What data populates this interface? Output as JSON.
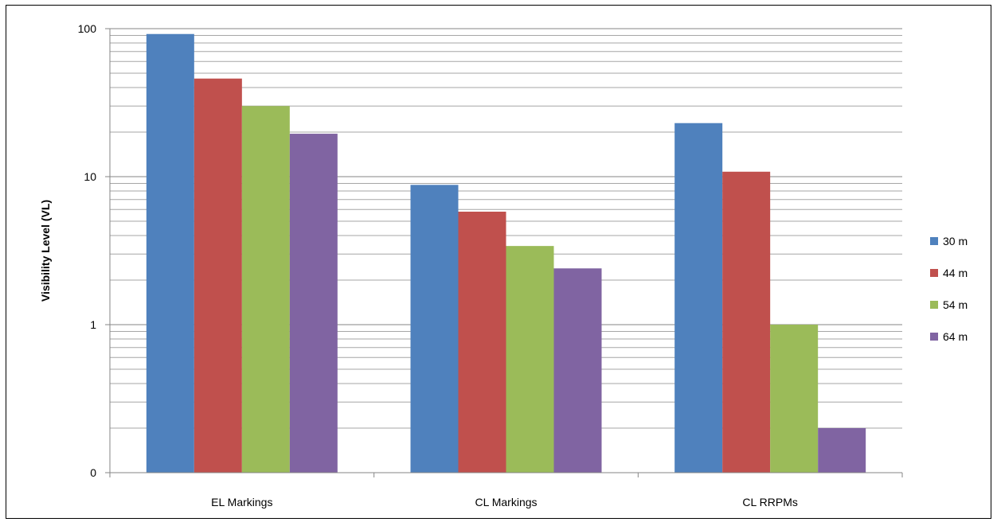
{
  "chart_data": {
    "type": "bar",
    "title": "",
    "xlabel": "",
    "ylabel": "Visibility Level (VL)",
    "y_scale": "log",
    "ylim": [
      0.1,
      100
    ],
    "y_tick_labels": [
      "100",
      "10",
      "1",
      "0"
    ],
    "y_tick_values": [
      100,
      10,
      1,
      0.1
    ],
    "grid": "major and minor horizontal gridlines",
    "legend_position": "right",
    "categories": [
      "EL Markings",
      "CL Markings",
      "CL RRPMs"
    ],
    "series": [
      {
        "name": "30 m",
        "color": "#4F81BD",
        "values": [
          92,
          8.8,
          23
        ]
      },
      {
        "name": "44 m",
        "color": "#C0504D",
        "values": [
          46,
          5.8,
          10.8
        ]
      },
      {
        "name": "54 m",
        "color": "#9BBB59",
        "values": [
          30,
          3.4,
          1.0
        ]
      },
      {
        "name": "64 m",
        "color": "#8064A2",
        "values": [
          19.5,
          2.4,
          0.2
        ]
      }
    ]
  }
}
